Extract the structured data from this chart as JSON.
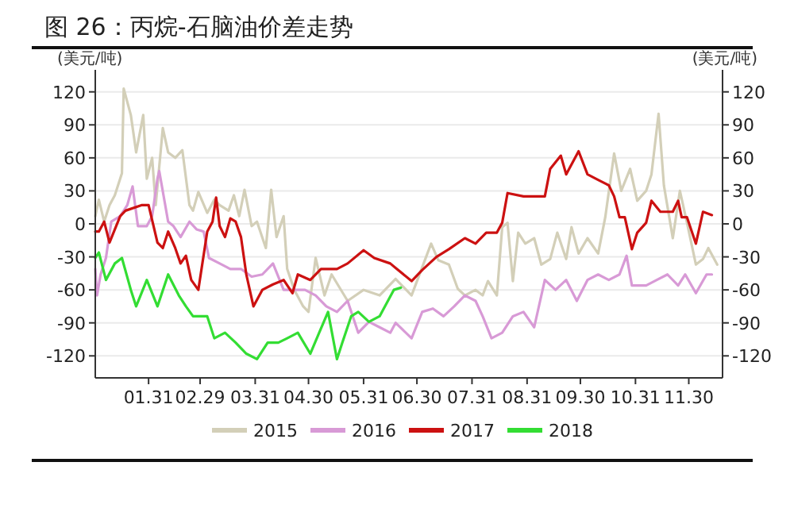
{
  "chart_data": {
    "type": "line",
    "title": "图 26：丙烷-石脑油价差走势",
    "ylabel": "(美元/吨)",
    "y2label": "(美元/吨)",
    "xlim": [
      "--01-01",
      "--12-19"
    ],
    "xticks": [
      {
        "value": "--01-31",
        "label": "01.31"
      },
      {
        "value": "--02-29",
        "label": "02.29"
      },
      {
        "value": "--03-31",
        "label": "03.31"
      },
      {
        "value": "--04-30",
        "label": "04.30"
      },
      {
        "value": "--05-31",
        "label": "05.31"
      },
      {
        "value": "--06-30",
        "label": "06.30"
      },
      {
        "value": "--07-31",
        "label": "07.31"
      },
      {
        "value": "--08-31",
        "label": "08.31"
      },
      {
        "value": "--09-30",
        "label": "09.30"
      },
      {
        "value": "--10-31",
        "label": "10.31"
      },
      {
        "value": "--11-30",
        "label": "11.30"
      }
    ],
    "ylim": [
      -140,
      140
    ],
    "yticks": [
      -120,
      -90,
      -60,
      -30,
      0,
      30,
      60,
      90,
      120
    ],
    "y2lim": [
      -140,
      140
    ],
    "y2ticks": [
      -120,
      -90,
      -60,
      -30,
      0,
      30,
      60,
      90,
      120
    ],
    "grid": "y",
    "legend": "bottom",
    "marker": "none",
    "line_style": "solid",
    "series": [
      {
        "name": "2015",
        "color": "#d3cfb8",
        "x": [
          "--01-01",
          "--01-03",
          "--01-06",
          "--01-09",
          "--01-12",
          "--01-16",
          "--01-17",
          "--01-21",
          "--01-24",
          "--01-28",
          "--01-30",
          "--02-02",
          "--02-04",
          "--02-08",
          "--02-11",
          "--02-15",
          "--02-19",
          "--02-23",
          "--02-25",
          "--02-28",
          "--03-04",
          "--03-08",
          "--03-11",
          "--03-16",
          "--03-19",
          "--03-22",
          "--03-25",
          "--03-29",
          "--04-01",
          "--04-06",
          "--04-09",
          "--04-12",
          "--04-16",
          "--04-18",
          "--04-22",
          "--04-27",
          "--04-30",
          "--05-04",
          "--05-09",
          "--05-13",
          "--05-22",
          "--05-31",
          "--06-09",
          "--06-18",
          "--06-27",
          "--07-08",
          "--07-12",
          "--07-18",
          "--07-23",
          "--07-27",
          "--08-02",
          "--08-06",
          "--08-09",
          "--08-14",
          "--08-17",
          "--08-20",
          "--08-23",
          "--08-26",
          "--08-30",
          "--09-04",
          "--09-08",
          "--09-13",
          "--09-17",
          "--09-22",
          "--09-25",
          "--09-29",
          "--10-04",
          "--10-10",
          "--10-14",
          "--10-19",
          "--10-23",
          "--10-28",
          "--11-01",
          "--11-06",
          "--11-09",
          "--11-13",
          "--11-16",
          "--11-21",
          "--11-25",
          "--11-29",
          "--12-04",
          "--12-08",
          "--12-11",
          "--12-16"
        ],
        "values": [
          7,
          22,
          2,
          17,
          26,
          46,
          123,
          99,
          65,
          99,
          41,
          60,
          17,
          87,
          65,
          60,
          67,
          17,
          12,
          29,
          10,
          22,
          17,
          12,
          26,
          7,
          31,
          -2,
          2,
          -22,
          31,
          -12,
          7,
          -41,
          -60,
          -75,
          -80,
          -31,
          -65,
          -46,
          -70,
          -60,
          -65,
          -50,
          -65,
          -18,
          -33,
          -37,
          -59,
          -65,
          -60,
          -65,
          -52,
          -65,
          -3,
          1,
          -52,
          -8,
          -18,
          -13,
          -37,
          -32,
          -8,
          -32,
          -3,
          -27,
          -13,
          -27,
          6,
          64,
          30,
          50,
          21,
          30,
          45,
          100,
          35,
          -13,
          30,
          1,
          -37,
          -32,
          -22,
          -37
        ]
      },
      {
        "name": "2016",
        "color": "#d89ad6",
        "x": [
          "--01-01",
          "--01-02",
          "--01-04",
          "--01-07",
          "--01-10",
          "--01-15",
          "--01-19",
          "--01-22",
          "--01-25",
          "--01-30",
          "--02-02",
          "--02-05",
          "--02-06",
          "--02-11",
          "--02-14",
          "--02-18",
          "--02-23",
          "--02-27",
          "--03-02",
          "--03-05",
          "--03-11",
          "--03-17",
          "--03-23",
          "--03-29",
          "--04-04",
          "--04-10",
          "--04-16",
          "--04-22",
          "--04-28",
          "--05-04",
          "--05-10",
          "--05-16",
          "--05-22",
          "--05-28",
          "--06-03",
          "--06-09",
          "--06-15",
          "--06-18",
          "--06-27",
          "--07-03",
          "--07-09",
          "--07-15",
          "--07-21",
          "--07-27",
          "--08-02",
          "--08-06",
          "--08-11",
          "--08-17",
          "--08-23",
          "--08-29",
          "--09-04",
          "--09-10",
          "--09-16",
          "--09-22",
          "--09-28",
          "--10-04",
          "--10-10",
          "--10-16",
          "--10-22",
          "--10-26",
          "--10-29",
          "--11-06",
          "--11-12",
          "--11-18",
          "--11-24",
          "--11-28",
          "--12-04",
          "--12-10",
          "--12-13"
        ],
        "values": [
          -41,
          -65,
          -46,
          -31,
          2,
          7,
          17,
          34,
          -2,
          -2,
          7,
          41,
          48,
          2,
          -2,
          -12,
          2,
          -5,
          -7,
          -31,
          -36,
          -41,
          -41,
          -48,
          -46,
          -36,
          -60,
          -60,
          -60,
          -65,
          -75,
          -80,
          -70,
          -99,
          -89,
          -94,
          -99,
          -90,
          -104,
          -80,
          -77,
          -84,
          -75,
          -65,
          -70,
          -84,
          -104,
          -99,
          -84,
          -80,
          -94,
          -51,
          -60,
          -51,
          -70,
          -51,
          -46,
          -51,
          -46,
          -29,
          -56,
          -56,
          -51,
          -46,
          -56,
          -46,
          -63,
          -46,
          -46
        ]
      },
      {
        "name": "2017",
        "color": "#cc1111",
        "x": [
          "--01-01",
          "--01-03",
          "--01-06",
          "--01-09",
          "--01-15",
          "--01-18",
          "--01-27",
          "--01-31",
          "--02-05",
          "--02-08",
          "--02-11",
          "--02-15",
          "--02-18",
          "--02-21",
          "--02-24",
          "--02-28",
          "--03-04",
          "--03-07",
          "--03-09",
          "--03-11",
          "--03-14",
          "--03-17",
          "--03-20",
          "--03-23",
          "--03-26",
          "--03-30",
          "--04-04",
          "--04-10",
          "--04-16",
          "--04-21",
          "--04-24",
          "--05-01",
          "--05-07",
          "--05-16",
          "--05-22",
          "--05-31",
          "--06-06",
          "--06-15",
          "--06-18",
          "--06-27",
          "--07-03",
          "--07-11",
          "--07-18",
          "--07-27",
          "--08-02",
          "--08-08",
          "--08-14",
          "--08-17",
          "--08-20",
          "--08-29",
          "--09-04",
          "--09-10",
          "--09-13",
          "--09-19",
          "--09-22",
          "--09-29",
          "--10-04",
          "--10-10",
          "--10-16",
          "--10-19",
          "--10-22",
          "--10-25",
          "--10-29",
          "--11-01",
          "--11-06",
          "--11-09",
          "--11-14",
          "--11-21",
          "--11-24",
          "--11-26",
          "--11-29",
          "--12-04",
          "--12-08",
          "--12-13"
        ],
        "values": [
          -7,
          -7,
          2,
          -17,
          7,
          12,
          17,
          17,
          -17,
          -22,
          -7,
          -22,
          -36,
          -29,
          -51,
          -60,
          -7,
          2,
          24,
          -2,
          -12,
          5,
          2,
          -12,
          -46,
          -75,
          -60,
          -55,
          -51,
          -63,
          -46,
          -51,
          -41,
          -41,
          -36,
          -24,
          -31,
          -36,
          -40,
          -52,
          -42,
          -30,
          -23,
          -13,
          -18,
          -8,
          -8,
          1,
          28,
          25,
          25,
          25,
          50,
          62,
          45,
          66,
          45,
          40,
          35,
          25,
          6,
          6,
          -23,
          -8,
          1,
          21,
          11,
          11,
          21,
          6,
          6,
          -18,
          11,
          8
        ]
      },
      {
        "name": "2018",
        "color": "#33dd33",
        "x": [
          "--01-01",
          "--01-03",
          "--01-07",
          "--01-12",
          "--01-16",
          "--01-21",
          "--01-24",
          "--01-30",
          "--02-05",
          "--02-11",
          "--02-17",
          "--02-21",
          "--02-25",
          "--03-04",
          "--03-08",
          "--03-14",
          "--03-20",
          "--03-26",
          "--04-01",
          "--04-07",
          "--04-13",
          "--04-18",
          "--04-24",
          "--05-01",
          "--05-06",
          "--05-11",
          "--05-16",
          "--05-19",
          "--05-24",
          "--05-28",
          "--06-03",
          "--06-09",
          "--06-12",
          "--06-17",
          "--06-21"
        ],
        "values": [
          -31,
          -26,
          -51,
          -36,
          -31,
          -60,
          -75,
          -51,
          -75,
          -46,
          -65,
          -75,
          -84,
          -84,
          -104,
          -99,
          -108,
          -118,
          -123,
          -108,
          -108,
          -104,
          -99,
          -118,
          -99,
          -80,
          -123,
          -108,
          -84,
          -80,
          -89,
          -84,
          -75,
          -60,
          -58
        ]
      }
    ]
  }
}
